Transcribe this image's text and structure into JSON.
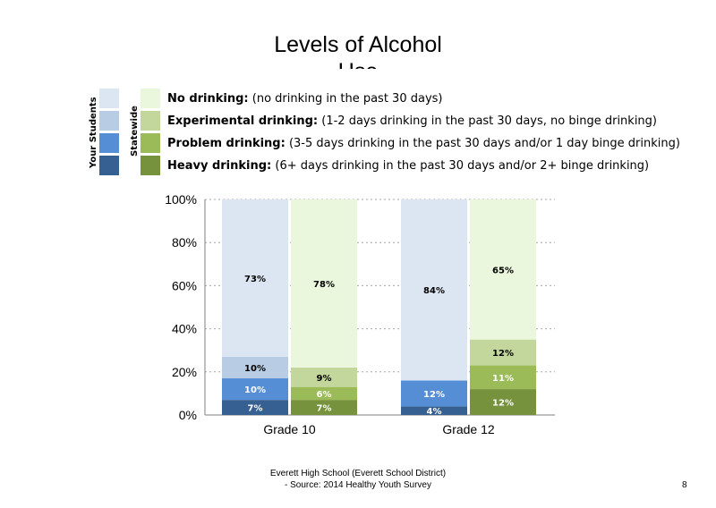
{
  "title_line1": "Levels of Alcohol",
  "title_line2": "Use",
  "legend": {
    "group_labels": [
      "Your Students",
      "Statewide"
    ],
    "items": [
      {
        "name": "No drinking:",
        "desc": " (no drinking in the past 30 days)",
        "color_local": "#dce6f2",
        "color_state": "#ebf7dd"
      },
      {
        "name": "Experimental drinking:",
        "desc": " (1-2 days drinking in the past 30 days, no binge drinking)",
        "color_local": "#b8cce4",
        "color_state": "#c3d69b"
      },
      {
        "name": "Problem drinking:",
        "desc": " (3-5 days drinking in the past 30 days and/or 1 day binge drinking)",
        "color_local": "#558ed5",
        "color_state": "#9bbb59"
      },
      {
        "name": "Heavy drinking:",
        "desc": " (6+ days drinking in the past 30 days and/or 2+ binge drinking)",
        "color_local": "#376092",
        "color_state": "#76923c"
      }
    ]
  },
  "chart_data": {
    "type": "bar",
    "stacked": true,
    "ylim": [
      0,
      100
    ],
    "yticks": [
      "0%",
      "20%",
      "40%",
      "60%",
      "80%",
      "100%"
    ],
    "categories": [
      "Grade 10",
      "Grade 12"
    ],
    "bars": [
      {
        "category": "Grade 10",
        "group": "Your Students",
        "segments": [
          {
            "level": "Heavy drinking",
            "value": 7,
            "label": "7%",
            "color": "#376092",
            "label_color": "#ffffff"
          },
          {
            "level": "Problem drinking",
            "value": 10,
            "label": "10%",
            "color": "#558ed5",
            "label_color": "#ffffff"
          },
          {
            "level": "Experimental drinking",
            "value": 10,
            "label": "10%",
            "color": "#b8cce4",
            "label_color": "#000000"
          },
          {
            "level": "No drinking",
            "value": 73,
            "label": "73%",
            "color": "#dce6f2",
            "label_color": "#000000"
          }
        ]
      },
      {
        "category": "Grade 10",
        "group": "Statewide",
        "segments": [
          {
            "level": "Heavy drinking",
            "value": 7,
            "label": "7%",
            "color": "#76923c",
            "label_color": "#ffffff"
          },
          {
            "level": "Problem drinking",
            "value": 6,
            "label": "6%",
            "color": "#9bbb59",
            "label_color": "#ffffff"
          },
          {
            "level": "Experimental drinking",
            "value": 9,
            "label": "9%",
            "color": "#c3d69b",
            "label_color": "#000000"
          },
          {
            "level": "No drinking",
            "value": 78,
            "label": "78%",
            "color": "#ebf7dd",
            "label_color": "#000000"
          }
        ]
      },
      {
        "category": "Grade 12",
        "group": "Your Students",
        "segments": [
          {
            "level": "Heavy drinking",
            "value": 4,
            "label": "4%",
            "color": "#376092",
            "label_color": "#ffffff"
          },
          {
            "level": "Problem drinking",
            "value": 12,
            "label": "12%",
            "color": "#558ed5",
            "label_color": "#ffffff"
          },
          {
            "level": "Experimental drinking",
            "value": 0,
            "label": "",
            "color": "#b8cce4",
            "label_color": "#000000"
          },
          {
            "level": "No drinking",
            "value": 84,
            "label": "84%",
            "color": "#dce6f2",
            "label_color": "#000000"
          }
        ]
      },
      {
        "category": "Grade 12",
        "group": "Statewide",
        "segments": [
          {
            "level": "Heavy drinking",
            "value": 12,
            "label": "12%",
            "color": "#76923c",
            "label_color": "#ffffff"
          },
          {
            "level": "Problem drinking",
            "value": 11,
            "label": "11%",
            "color": "#9bbb59",
            "label_color": "#ffffff"
          },
          {
            "level": "Experimental drinking",
            "value": 12,
            "label": "12%",
            "color": "#c3d69b",
            "label_color": "#000000"
          },
          {
            "level": "No drinking",
            "value": 65,
            "label": "65%",
            "color": "#ebf7dd",
            "label_color": "#000000"
          }
        ]
      }
    ],
    "grid": "dashed horizontal"
  },
  "footer_line1": "Everett High School (Everett School District)",
  "footer_line2": "- Source: 2014 Healthy Youth Survey",
  "page_number": "8"
}
